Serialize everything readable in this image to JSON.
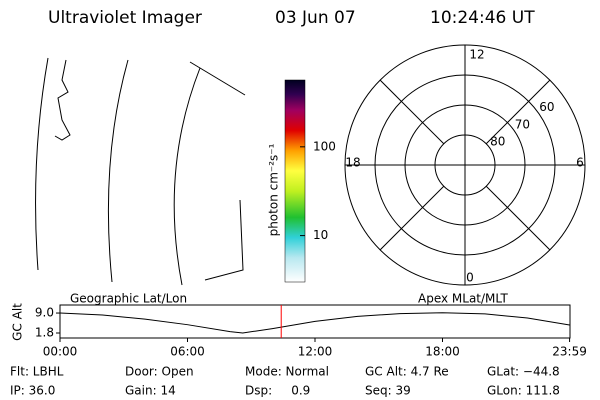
{
  "header": {
    "instrument": "Ultraviolet Imager",
    "date": "03 Jun 07",
    "time": "10:24:46 UT"
  },
  "colorbar": {
    "label": "photon cm⁻²s⁻¹",
    "log": true,
    "lim": [
      3,
      566
    ],
    "ticks": [
      10,
      100
    ]
  },
  "polar": {
    "outer_lat": 50,
    "rings": [
      80,
      70,
      60
    ],
    "mlt_labels": [
      "12",
      "18",
      "6",
      "0"
    ]
  },
  "chart_data": {
    "type": "line",
    "ylabel": "GC Alt",
    "left_label": "Geographic Lat/Lon",
    "right_label": "Apex MLat/MLT",
    "x": [
      0,
      2,
      4,
      6,
      8,
      8.6,
      10,
      12,
      14,
      16,
      18,
      20,
      22,
      23.98
    ],
    "series": [
      {
        "name": "GC Alt",
        "color": "#000000",
        "values": [
          9.0,
          8.3,
          6.8,
          4.8,
          2.3,
          1.8,
          3.4,
          6.0,
          7.8,
          8.8,
          9.1,
          8.7,
          7.2,
          4.7
        ]
      }
    ],
    "xlim": [
      0,
      24
    ],
    "ylim": [
      0,
      11.9
    ],
    "xticks": [
      {
        "value": 0,
        "label": "00:00"
      },
      {
        "value": 6,
        "label": "06:00"
      },
      {
        "value": 12,
        "label": "12:00"
      },
      {
        "value": 18,
        "label": "18:00"
      },
      {
        "value": 23.98,
        "label": "23:59"
      }
    ],
    "yticks": [
      {
        "value": 9.0,
        "label": "9.0"
      },
      {
        "value": 1.8,
        "label": "1.8"
      }
    ],
    "current_time": 10.41,
    "current_time_color": "#ff0000"
  },
  "footer": {
    "rows": [
      [
        "Flt: LBHL",
        "Door: Open",
        "Mode: Normal",
        "GC Alt: 4.7 Re",
        "GLat: −44.8"
      ],
      [
        "IP: 36.0",
        "Gain: 14",
        "Dsp:     0.9",
        "Seq: 39",
        "GLon: 111.8"
      ]
    ]
  }
}
